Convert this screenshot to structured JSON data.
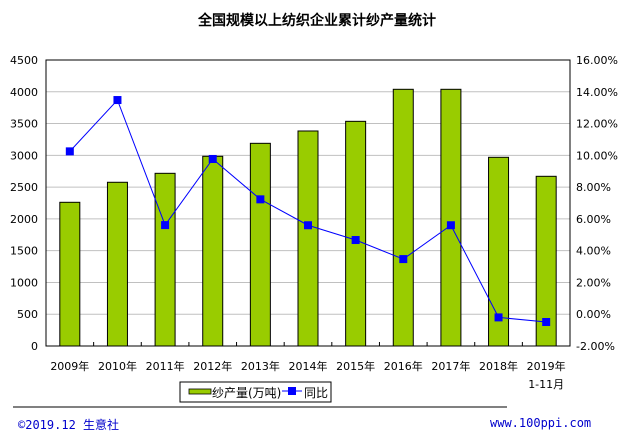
{
  "chart_data": {
    "type": "bar+line",
    "title": "全国规模以上纺织企业累计纱产量统计",
    "categories": [
      "2009年",
      "2010年",
      "2011年",
      "2012年",
      "2013年",
      "2014年",
      "2015年",
      "2016年",
      "2017年",
      "2018年",
      "2019年\n1-11月"
    ],
    "series": [
      {
        "name": "纱产量(万吨)",
        "type": "bar",
        "axis": "left",
        "color": "#99cc00",
        "values": [
          2261,
          2576,
          2717,
          2985,
          3189,
          3383,
          3535,
          4039,
          4039,
          2969,
          2670
        ]
      },
      {
        "name": "同比",
        "type": "line",
        "axis": "right",
        "color": "#0000ff",
        "unit": "%",
        "values": [
          10.25,
          13.48,
          5.61,
          9.77,
          7.23,
          5.6,
          4.67,
          3.47,
          5.6,
          -0.2,
          -0.49
        ]
      }
    ],
    "y_left": {
      "range": [
        0,
        4500
      ],
      "ticks": [
        "0",
        "500",
        "1000",
        "1500",
        "2000",
        "2500",
        "3000",
        "3500",
        "4000",
        "4500"
      ]
    },
    "y_right": {
      "range": [
        -2,
        16
      ],
      "ticks": [
        "-2.00%",
        "0.00%",
        "2.00%",
        "4.00%",
        "6.00%",
        "8.00%",
        "10.00%",
        "12.00%",
        "14.00%",
        "16.00%"
      ]
    },
    "grid": true,
    "legend_position": "bottom"
  },
  "footer": {
    "left": "©2019.12 生意社",
    "right": "www.100ppi.com"
  }
}
